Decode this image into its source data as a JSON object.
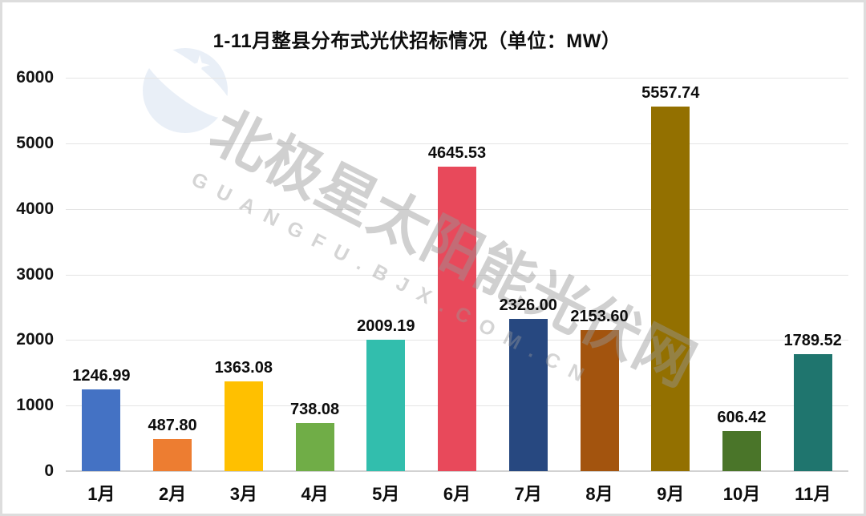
{
  "title": "1-11月整县分布式光伏招标情况（单位：MW）",
  "watermark": {
    "cn": "北极星太阳能光伏网",
    "en": "GUANGFU.BJX.COM.CN"
  },
  "chart_data": {
    "type": "bar",
    "title": "1-11月整县分布式光伏招标情况（单位：MW）",
    "unit_note": "单位：MW",
    "categories": [
      "1月",
      "2月",
      "3月",
      "4月",
      "5月",
      "6月",
      "7月",
      "8月",
      "9月",
      "10月",
      "11月"
    ],
    "values": [
      1246.99,
      487.8,
      1363.08,
      738.08,
      2009.19,
      4645.53,
      2326.0,
      2153.6,
      5557.74,
      606.42,
      1789.52
    ],
    "value_labels": [
      "1246.99",
      "487.80",
      "1363.08",
      "738.08",
      "2009.19",
      "4645.53",
      "2326.00",
      "2153.60",
      "5557.74",
      "606.42",
      "1789.52"
    ],
    "bar_colors": [
      "#4472C4",
      "#ED7D31",
      "#FFC000",
      "#70AD47",
      "#32BEAD",
      "#E8495B",
      "#274880",
      "#A3540E",
      "#937000",
      "#4A7529",
      "#1F756E"
    ],
    "xlabel": "",
    "ylabel": "",
    "ylim": [
      0,
      6000
    ],
    "yticks": [
      0,
      1000,
      2000,
      3000,
      4000,
      5000,
      6000
    ],
    "grid": true,
    "legend": false
  }
}
